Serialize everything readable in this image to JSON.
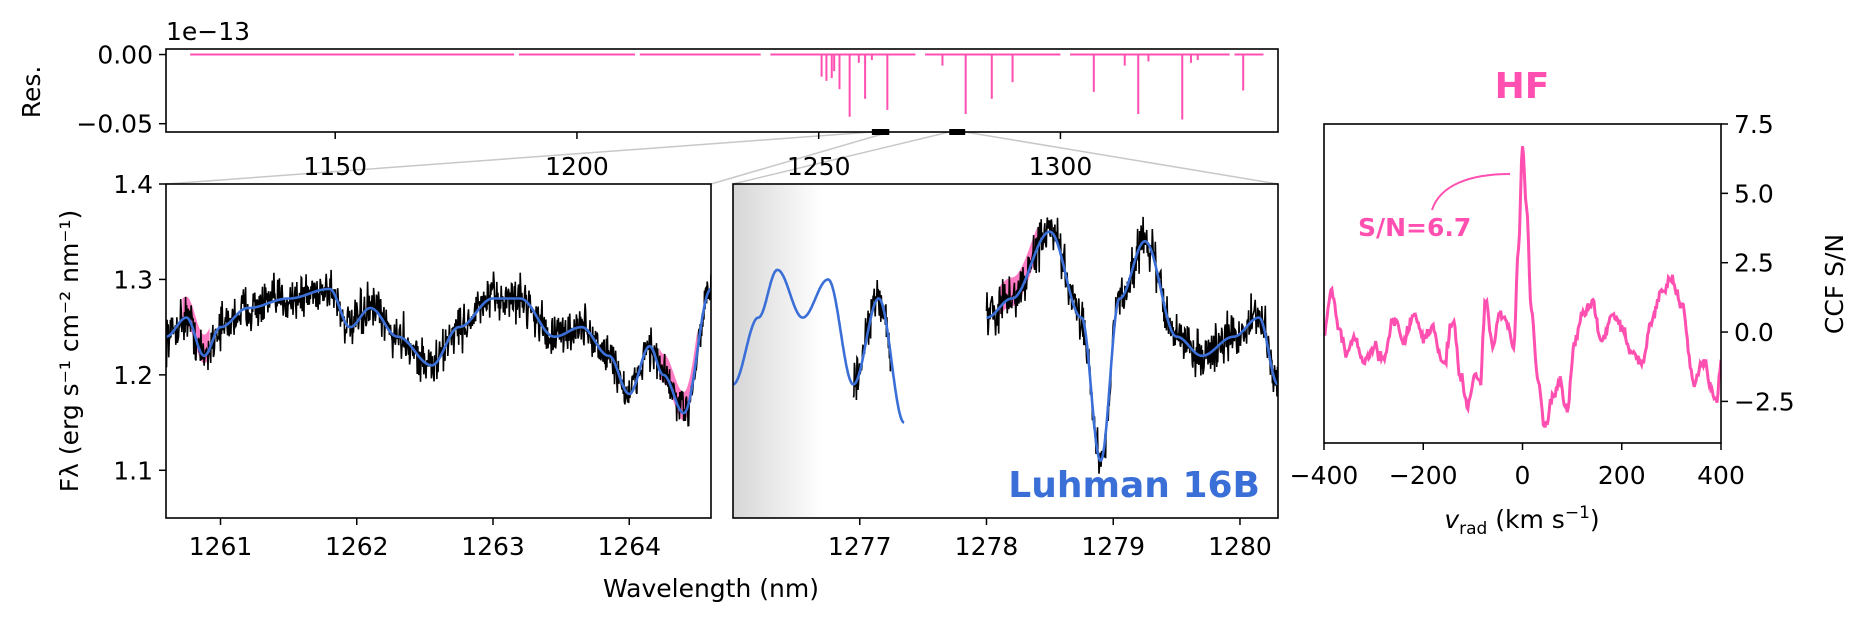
{
  "colors": {
    "species": "#ff4fb0",
    "model": "#3b6fd8",
    "data": "#000000",
    "zoom_line": "#c8c8c8"
  },
  "chart_data": [
    {
      "id": "residual",
      "type": "line",
      "ylabel": "Res.",
      "offset_label": "1e−13",
      "xlim": [
        1115,
        1345
      ],
      "ylim": [
        -0.056,
        0.004
      ],
      "x_ticks": [
        "1150",
        "1200",
        "1250",
        "1300"
      ],
      "y_ticks": [
        "0.00",
        "−0.05"
      ],
      "line_segments": [
        [
          1120,
          1187
        ],
        [
          1188,
          1212
        ],
        [
          1213,
          1238
        ],
        [
          1240,
          1270
        ],
        [
          1272,
          1300
        ],
        [
          1302,
          1335
        ],
        [
          1336,
          1342
        ]
      ],
      "dips": [
        {
          "x": 1250.6,
          "y": -0.016
        },
        {
          "x": 1251.6,
          "y": -0.019
        },
        {
          "x": 1252.7,
          "y": -0.017
        },
        {
          "x": 1253.2,
          "y": -0.012
        },
        {
          "x": 1254.3,
          "y": -0.025
        },
        {
          "x": 1256.4,
          "y": -0.045
        },
        {
          "x": 1258.3,
          "y": -0.006
        },
        {
          "x": 1259.6,
          "y": -0.032
        },
        {
          "x": 1261.0,
          "y": -0.004
        },
        {
          "x": 1264.2,
          "y": -0.04
        },
        {
          "x": 1275.6,
          "y": -0.008
        },
        {
          "x": 1280.4,
          "y": -0.043
        },
        {
          "x": 1285.8,
          "y": -0.032
        },
        {
          "x": 1290.1,
          "y": -0.02
        },
        {
          "x": 1306.9,
          "y": -0.027
        },
        {
          "x": 1313.3,
          "y": -0.008
        },
        {
          "x": 1316.1,
          "y": -0.043
        },
        {
          "x": 1318.2,
          "y": -0.005
        },
        {
          "x": 1325.2,
          "y": -0.047
        },
        {
          "x": 1327.0,
          "y": -0.006
        },
        {
          "x": 1328.4,
          "y": -0.004
        },
        {
          "x": 1337.8,
          "y": -0.026
        }
      ],
      "zoom_markers": [
        [
          1261.0,
          1264.6
        ],
        [
          1277.0,
          1280.3
        ]
      ]
    },
    {
      "id": "spectrum",
      "type": "line",
      "ylabel": "Fλ (erg s⁻¹ cm⁻² nm⁻¹)",
      "xlabel": "Wavelength (nm)",
      "annotation": "Luhman 16B",
      "y_ticks": [
        "1.1",
        "1.2",
        "1.3",
        "1.4"
      ],
      "ylim": [
        1.05,
        1.4
      ],
      "panels": [
        {
          "xlim": [
            1260.6,
            1264.6
          ],
          "x_ticks": [
            "1261",
            "1262",
            "1263",
            "1264"
          ]
        },
        {
          "xlim": [
            1276.0,
            1280.3
          ],
          "x_ticks": [
            "1277",
            "1278",
            "1279",
            "1280"
          ],
          "masked_region": [
            1276.0,
            1276.7
          ]
        }
      ],
      "model_knots": [
        [
          1260.6,
          1.24
        ],
        [
          1260.75,
          1.26
        ],
        [
          1260.88,
          1.22
        ],
        [
          1261.0,
          1.25
        ],
        [
          1261.2,
          1.27
        ],
        [
          1261.5,
          1.28
        ],
        [
          1261.8,
          1.29
        ],
        [
          1261.95,
          1.25
        ],
        [
          1262.1,
          1.27
        ],
        [
          1262.3,
          1.24
        ],
        [
          1262.55,
          1.21
        ],
        [
          1262.75,
          1.25
        ],
        [
          1263.0,
          1.28
        ],
        [
          1263.2,
          1.28
        ],
        [
          1263.45,
          1.24
        ],
        [
          1263.65,
          1.25
        ],
        [
          1263.85,
          1.22
        ],
        [
          1264.0,
          1.18
        ],
        [
          1264.15,
          1.23
        ],
        [
          1264.25,
          1.2
        ],
        [
          1264.4,
          1.16
        ],
        [
          1264.6,
          1.29
        ],
        [
          1276.0,
          1.19
        ],
        [
          1276.2,
          1.26
        ],
        [
          1276.35,
          1.31
        ],
        [
          1276.55,
          1.26
        ],
        [
          1276.75,
          1.3
        ],
        [
          1276.95,
          1.19
        ],
        [
          1277.15,
          1.28
        ],
        [
          1277.35,
          1.15
        ],
        [
          1278.0,
          1.26
        ],
        [
          1278.2,
          1.28
        ],
        [
          1278.5,
          1.35
        ],
        [
          1278.75,
          1.26
        ],
        [
          1278.9,
          1.11
        ],
        [
          1279.05,
          1.28
        ],
        [
          1279.25,
          1.34
        ],
        [
          1279.5,
          1.24
        ],
        [
          1279.7,
          1.22
        ],
        [
          1279.95,
          1.24
        ],
        [
          1280.15,
          1.26
        ],
        [
          1280.3,
          1.19
        ]
      ],
      "data_ranges": [
        [
          1260.6,
          1264.6
        ],
        [
          1276.95,
          1277.25
        ],
        [
          1278.0,
          1280.3
        ]
      ],
      "highlights": [
        [
          1260.72,
          1260.92
        ],
        [
          1264.22,
          1264.5
        ],
        [
          1278.1,
          1278.4
        ]
      ]
    },
    {
      "id": "ccf",
      "type": "line",
      "title": "HF",
      "annotation": "S/N=6.7",
      "xlabel": "v_rad (km s⁻¹)",
      "ylabel": "CCF S/N",
      "xlim": [
        -400,
        400
      ],
      "ylim": [
        -4,
        7.5
      ],
      "x_ticks": [
        "−400",
        "−200",
        "0",
        "200",
        "400"
      ],
      "y_ticks": [
        "−2.5",
        "0.0",
        "2.5",
        "5.0",
        "7.5"
      ],
      "knots": [
        [
          -400,
          0.0
        ],
        [
          -385,
          1.5
        ],
        [
          -370,
          0.2
        ],
        [
          -355,
          -0.8
        ],
        [
          -340,
          -0.2
        ],
        [
          -320,
          -1.1
        ],
        [
          -300,
          -0.5
        ],
        [
          -280,
          -1.0
        ],
        [
          -260,
          0.5
        ],
        [
          -240,
          -0.3
        ],
        [
          -220,
          0.6
        ],
        [
          -200,
          -0.2
        ],
        [
          -180,
          0.1
        ],
        [
          -160,
          -1.2
        ],
        [
          -140,
          0.4
        ],
        [
          -125,
          -1.6
        ],
        [
          -110,
          -2.6
        ],
        [
          -95,
          -1.5
        ],
        [
          -85,
          -1.9
        ],
        [
          -75,
          1.2
        ],
        [
          -60,
          -0.5
        ],
        [
          -45,
          0.7
        ],
        [
          -30,
          0.3
        ],
        [
          -18,
          -0.6
        ],
        [
          -8,
          3.0
        ],
        [
          0,
          6.7
        ],
        [
          8,
          4.5
        ],
        [
          18,
          0.8
        ],
        [
          30,
          -1.5
        ],
        [
          45,
          -3.5
        ],
        [
          60,
          -2.5
        ],
        [
          75,
          -1.8
        ],
        [
          90,
          -2.8
        ],
        [
          105,
          -0.4
        ],
        [
          120,
          0.6
        ],
        [
          140,
          1.1
        ],
        [
          160,
          -0.3
        ],
        [
          180,
          0.6
        ],
        [
          200,
          0.2
        ],
        [
          220,
          -0.7
        ],
        [
          240,
          -1.2
        ],
        [
          260,
          0.4
        ],
        [
          280,
          1.5
        ],
        [
          300,
          1.9
        ],
        [
          320,
          1.0
        ],
        [
          345,
          -1.8
        ],
        [
          365,
          -1.0
        ],
        [
          380,
          -2.0
        ],
        [
          390,
          -2.6
        ],
        [
          400,
          -1.0
        ]
      ]
    }
  ]
}
